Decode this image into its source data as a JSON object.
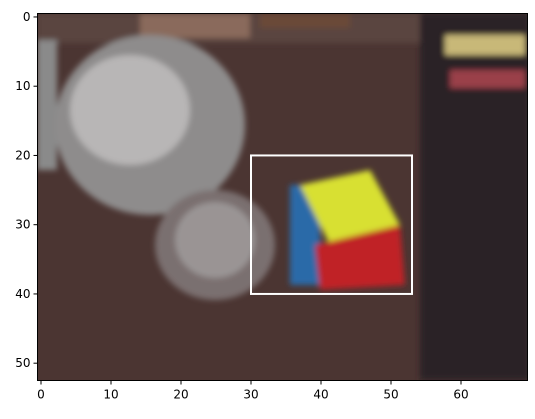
{
  "chart_data": {
    "type": "image",
    "xlim": [
      -0.5,
      69.5
    ],
    "ylim": [
      52.5,
      -0.5
    ],
    "xticks": [
      0,
      10,
      20,
      30,
      40,
      50,
      60
    ],
    "yticks": [
      0,
      10,
      20,
      30,
      40,
      50
    ],
    "box": {
      "x": [
        30,
        53
      ],
      "y": [
        20,
        40
      ],
      "color": "#ffffff"
    }
  }
}
